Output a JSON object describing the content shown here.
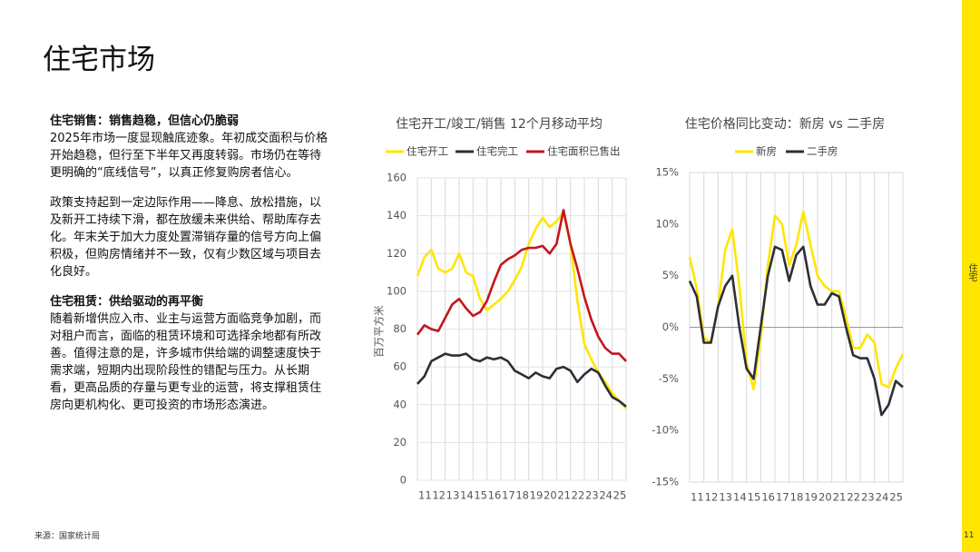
{
  "title": "住宅市场",
  "sections": [
    {
      "heading": "住宅销售：销售趋稳，但信心仍脆弱",
      "body": "2025年市场一度显现触底迹象。年初成交面积与价格开始趋稳，但行至下半年又再度转弱。市场仍在等待更明确的“底线信号”，以真正修复购房者信心。"
    },
    {
      "body": "政策支持起到一定边际作用——降息、放松措施，以及新开工持续下滑，都在放缓未来供给、帮助库存去化。年末关于加大力度处置滞销存量的信号方向上偏积极，但购房情绪并不一致，仅有少数区域与项目去化良好。"
    },
    {
      "heading": "住宅租赁：供给驱动的再平衡",
      "body": "随着新增供应入市、业主与运营方面临竞争加剧，而对租户而言，面临的租赁环境和可选择余地都有所改善。值得注意的是，许多城市供给端的调整速度快于需求端，短期内出现阶段性的错配与压力。从长期看，更高品质的存量与更专业的运营，将支撑租赁住房向更机构化、更可投资的市场形态演进。"
    }
  ],
  "source": "来源：国家统计局",
  "side_label": "住宅",
  "page_number": "11",
  "chart_data": [
    {
      "type": "line",
      "title": "住宅开工/竣工/销售 12个月移动平均",
      "y_label": "百万平方米",
      "grid": "both",
      "x": [
        11,
        11.5,
        12,
        12.5,
        13,
        13.5,
        14,
        14.5,
        15,
        15.5,
        16,
        16.5,
        17,
        17.5,
        18,
        18.5,
        19,
        19.5,
        20,
        20.5,
        21,
        21.5,
        22,
        22.5,
        23,
        23.5,
        24,
        24.5,
        25,
        25.5,
        26
      ],
      "xlim": [
        11,
        26
      ],
      "xticks": [
        11,
        12,
        13,
        14,
        15,
        16,
        17,
        18,
        19,
        20,
        21,
        22,
        23,
        24,
        25
      ],
      "ylim": [
        0,
        160
      ],
      "yticks": [
        0,
        20,
        40,
        60,
        80,
        100,
        120,
        140,
        160
      ],
      "series": [
        {
          "name": "住宅开工",
          "color": "#ffe600",
          "values": [
            108,
            118,
            122,
            112,
            110,
            112,
            120,
            110,
            108,
            96,
            90,
            93,
            96,
            100,
            106,
            113,
            125,
            133,
            139,
            134,
            137,
            142,
            125,
            95,
            72,
            64,
            57,
            52,
            46,
            42,
            38
          ]
        },
        {
          "name": "住宅完工",
          "color": "#2e2e38",
          "values": [
            51,
            55,
            63,
            65,
            67,
            66,
            66,
            67,
            64,
            63,
            65,
            64,
            65,
            63,
            58,
            56,
            54,
            57,
            55,
            54,
            59,
            60,
            58,
            52,
            56,
            59,
            57,
            50,
            44,
            42,
            39
          ]
        },
        {
          "name": "住宅面积已售出",
          "color": "#c4161c",
          "values": [
            77,
            82,
            80,
            79,
            86,
            93,
            96,
            91,
            87,
            89,
            95,
            105,
            114,
            117,
            119,
            122,
            123,
            123,
            124,
            120,
            125,
            143,
            125,
            112,
            97,
            85,
            76,
            70,
            67,
            67,
            63
          ]
        }
      ]
    },
    {
      "type": "line",
      "title": "住宅价格同比变动：新房 vs 二手房",
      "grid": "x",
      "x": [
        11,
        11.5,
        12,
        12.5,
        13,
        13.5,
        14,
        14.5,
        15,
        15.5,
        16,
        16.5,
        17,
        17.5,
        18,
        18.5,
        19,
        19.5,
        20,
        20.5,
        21,
        21.5,
        22,
        22.5,
        23,
        23.5,
        24,
        24.5,
        25,
        25.5,
        26
      ],
      "xlim": [
        11,
        26
      ],
      "xticks": [
        11,
        12,
        13,
        14,
        15,
        16,
        17,
        18,
        19,
        20,
        21,
        22,
        23,
        24,
        25
      ],
      "ylim": [
        -15,
        15
      ],
      "yticks": [
        {
          "value": -15,
          "label": "-15%"
        },
        {
          "value": -10,
          "label": "-10%"
        },
        {
          "value": -5,
          "label": "-5%"
        },
        {
          "value": 0,
          "label": "0%"
        },
        {
          "value": 5,
          "label": "5%"
        },
        {
          "value": 10,
          "label": "10%"
        },
        {
          "value": 15,
          "label": "15%"
        }
      ],
      "series": [
        {
          "name": "新房",
          "color": "#ffe600",
          "values": [
            6.8,
            3.8,
            -1,
            -1.5,
            2,
            7.5,
            9.5,
            4,
            -3.5,
            -6,
            -1,
            6,
            10.8,
            10,
            6,
            8,
            11.2,
            8,
            5,
            4,
            3.5,
            3.5,
            1,
            -2,
            -2,
            -0.7,
            -1.5,
            -5.5,
            -5.8,
            -4,
            -2.6
          ]
        },
        {
          "name": "二手房",
          "color": "#2e2e38",
          "values": [
            4.5,
            3,
            -1.5,
            -1.5,
            2,
            4,
            5,
            0,
            -4,
            -5,
            0,
            5,
            7.8,
            7.5,
            4.5,
            7,
            7.8,
            4,
            2.2,
            2.2,
            3.3,
            3,
            0,
            -2.7,
            -3,
            -3,
            -5,
            -8.5,
            -7.5,
            -5.2,
            -5.8
          ]
        }
      ]
    }
  ]
}
